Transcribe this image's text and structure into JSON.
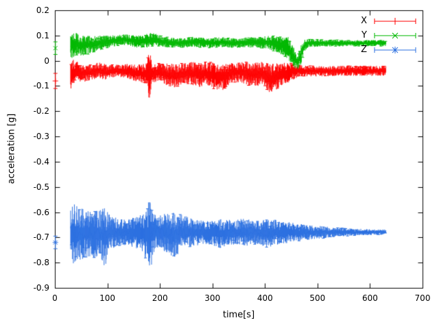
{
  "figure": {
    "background": "#ffffff",
    "text_color": "#000000"
  },
  "chart_data": {
    "type": "line",
    "style": "errorbars",
    "title": "",
    "xlabel": "time[s]",
    "ylabel": "acceleration [g]",
    "xlim": [
      0,
      700
    ],
    "ylim": [
      -0.9,
      0.2
    ],
    "xticks": [
      0,
      100,
      200,
      300,
      400,
      500,
      600,
      700
    ],
    "yticks": [
      -0.9,
      -0.8,
      -0.7,
      -0.6,
      -0.5,
      -0.4,
      -0.3,
      -0.2,
      -0.1,
      0,
      0.1,
      0.2
    ],
    "grid": false,
    "legend_position": "top-right",
    "series": [
      {
        "name": "X",
        "color": "#ff0000",
        "marker": "plus",
        "start_point": {
          "x": 1,
          "y": -0.08,
          "err": 0.03
        },
        "band": [
          [
            30,
            -0.055,
            0.065
          ],
          [
            40,
            -0.04,
            0.04
          ],
          [
            55,
            -0.05,
            0.035
          ],
          [
            70,
            -0.045,
            0.03
          ],
          [
            85,
            -0.04,
            0.035
          ],
          [
            100,
            -0.045,
            0.03
          ],
          [
            115,
            -0.04,
            0.025
          ],
          [
            130,
            -0.04,
            0.03
          ],
          [
            145,
            -0.045,
            0.03
          ],
          [
            160,
            -0.05,
            0.035
          ],
          [
            175,
            -0.05,
            0.04
          ],
          [
            180,
            -0.06,
            0.11
          ],
          [
            185,
            -0.05,
            0.04
          ],
          [
            200,
            -0.045,
            0.035
          ],
          [
            215,
            -0.055,
            0.045
          ],
          [
            230,
            -0.06,
            0.05
          ],
          [
            245,
            -0.05,
            0.04
          ],
          [
            260,
            -0.05,
            0.045
          ],
          [
            275,
            -0.055,
            0.05
          ],
          [
            290,
            -0.05,
            0.045
          ],
          [
            305,
            -0.06,
            0.055
          ],
          [
            320,
            -0.065,
            0.055
          ],
          [
            335,
            -0.05,
            0.04
          ],
          [
            350,
            -0.045,
            0.04
          ],
          [
            365,
            -0.05,
            0.045
          ],
          [
            380,
            -0.055,
            0.05
          ],
          [
            395,
            -0.05,
            0.045
          ],
          [
            410,
            -0.07,
            0.06
          ],
          [
            420,
            -0.065,
            0.055
          ],
          [
            435,
            -0.05,
            0.045
          ],
          [
            450,
            -0.045,
            0.035
          ],
          [
            465,
            -0.04,
            0.025
          ],
          [
            480,
            -0.04,
            0.022
          ],
          [
            510,
            -0.042,
            0.02
          ],
          [
            540,
            -0.04,
            0.02
          ],
          [
            570,
            -0.04,
            0.02
          ],
          [
            600,
            -0.04,
            0.02
          ],
          [
            630,
            -0.04,
            0.02
          ]
        ]
      },
      {
        "name": "Y",
        "color": "#00b800",
        "marker": "cross",
        "start_point": {
          "x": 1,
          "y": 0.05,
          "err": 0.025
        },
        "band": [
          [
            30,
            0.06,
            0.055
          ],
          [
            40,
            0.065,
            0.045
          ],
          [
            55,
            0.06,
            0.04
          ],
          [
            70,
            0.065,
            0.035
          ],
          [
            85,
            0.07,
            0.03
          ],
          [
            100,
            0.075,
            0.025
          ],
          [
            115,
            0.08,
            0.022
          ],
          [
            130,
            0.085,
            0.022
          ],
          [
            145,
            0.08,
            0.022
          ],
          [
            160,
            0.075,
            0.025
          ],
          [
            175,
            0.08,
            0.03
          ],
          [
            190,
            0.085,
            0.025
          ],
          [
            205,
            0.075,
            0.022
          ],
          [
            220,
            0.072,
            0.02
          ],
          [
            240,
            0.07,
            0.02
          ],
          [
            260,
            0.075,
            0.02
          ],
          [
            280,
            0.072,
            0.02
          ],
          [
            300,
            0.07,
            0.02
          ],
          [
            320,
            0.074,
            0.02
          ],
          [
            340,
            0.07,
            0.02
          ],
          [
            360,
            0.072,
            0.02
          ],
          [
            380,
            0.074,
            0.022
          ],
          [
            400,
            0.072,
            0.025
          ],
          [
            415,
            0.07,
            0.03
          ],
          [
            430,
            0.06,
            0.035
          ],
          [
            445,
            0.05,
            0.045
          ],
          [
            455,
            0.01,
            0.04
          ],
          [
            462,
            -0.005,
            0.03
          ],
          [
            468,
            0.02,
            0.04
          ],
          [
            475,
            0.06,
            0.025
          ],
          [
            482,
            0.07,
            0.016
          ],
          [
            510,
            0.07,
            0.014
          ],
          [
            540,
            0.07,
            0.013
          ],
          [
            570,
            0.07,
            0.012
          ],
          [
            600,
            0.07,
            0.012
          ],
          [
            630,
            0.07,
            0.012
          ]
        ]
      },
      {
        "name": "Z",
        "color": "#2c70e0",
        "marker": "asterisk",
        "start_point": {
          "x": 1,
          "y": -0.72,
          "err": 0.025
        },
        "band": [
          [
            30,
            -0.68,
            0.1
          ],
          [
            38,
            -0.69,
            0.13
          ],
          [
            48,
            -0.685,
            0.11
          ],
          [
            60,
            -0.68,
            0.1
          ],
          [
            72,
            -0.685,
            0.1
          ],
          [
            85,
            -0.68,
            0.09
          ],
          [
            95,
            -0.7,
            0.12
          ],
          [
            105,
            -0.68,
            0.07
          ],
          [
            120,
            -0.68,
            0.055
          ],
          [
            135,
            -0.68,
            0.05
          ],
          [
            150,
            -0.68,
            0.06
          ],
          [
            165,
            -0.68,
            0.07
          ],
          [
            178,
            -0.69,
            0.13
          ],
          [
            182,
            -0.7,
            0.15
          ],
          [
            188,
            -0.68,
            0.08
          ],
          [
            200,
            -0.68,
            0.07
          ],
          [
            215,
            -0.68,
            0.08
          ],
          [
            228,
            -0.69,
            0.1
          ],
          [
            240,
            -0.68,
            0.07
          ],
          [
            255,
            -0.68,
            0.06
          ],
          [
            270,
            -0.68,
            0.055
          ],
          [
            285,
            -0.68,
            0.05
          ],
          [
            300,
            -0.68,
            0.05
          ],
          [
            315,
            -0.685,
            0.06
          ],
          [
            330,
            -0.68,
            0.05
          ],
          [
            345,
            -0.68,
            0.05
          ],
          [
            360,
            -0.68,
            0.055
          ],
          [
            375,
            -0.68,
            0.05
          ],
          [
            390,
            -0.68,
            0.05
          ],
          [
            405,
            -0.685,
            0.055
          ],
          [
            420,
            -0.68,
            0.05
          ],
          [
            435,
            -0.68,
            0.045
          ],
          [
            450,
            -0.68,
            0.04
          ],
          [
            465,
            -0.68,
            0.035
          ],
          [
            480,
            -0.68,
            0.03
          ],
          [
            500,
            -0.68,
            0.027
          ],
          [
            520,
            -0.68,
            0.022
          ],
          [
            540,
            -0.679,
            0.018
          ],
          [
            560,
            -0.679,
            0.015
          ],
          [
            580,
            -0.679,
            0.013
          ],
          [
            600,
            -0.679,
            0.012
          ],
          [
            615,
            -0.679,
            0.011
          ],
          [
            630,
            -0.679,
            0.01
          ]
        ]
      }
    ]
  }
}
